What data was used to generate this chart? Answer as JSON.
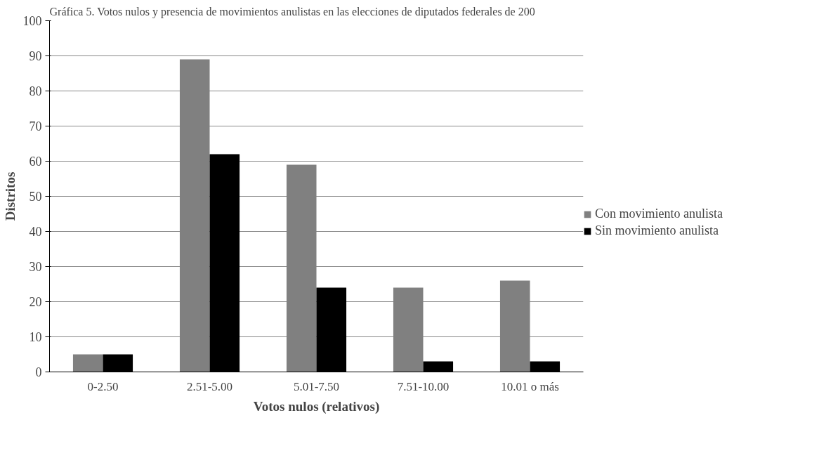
{
  "chart_data": {
    "type": "bar",
    "title": "Gráfica 5. Votos nulos y presencia de movimientos anulistas en las elecciones de diputados federales de 200",
    "xlabel": "Votos nulos (relativos)",
    "ylabel": "Distritos",
    "categories": [
      "0-2.50",
      "2.51-5.00",
      "5.01-7.50",
      "7.51-10.00",
      "10.01 o más"
    ],
    "series": [
      {
        "name": "Con movimiento anulista",
        "color": "#808080",
        "values": [
          5,
          89,
          59,
          24,
          26
        ]
      },
      {
        "name": "Sin movimiento anulista",
        "color": "#000000",
        "values": [
          5,
          62,
          24,
          3,
          3
        ]
      }
    ],
    "ylim": [
      0,
      100
    ],
    "yticks": [
      0,
      10,
      20,
      30,
      40,
      50,
      60,
      70,
      80,
      90,
      100
    ],
    "grid": "y",
    "legend": "right"
  }
}
